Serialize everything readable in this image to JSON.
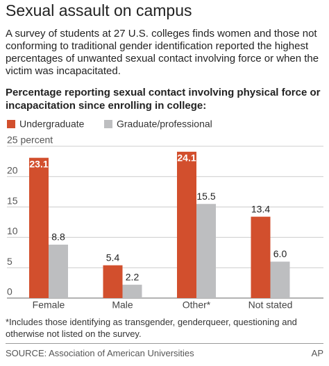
{
  "chart_data": {
    "type": "bar",
    "title": "Sexual assault on campus",
    "subtitle": "A survey of students at 27 U.S. colleges finds women and those not conforming to traditional gender identification reported the highest percentages of unwanted sexual contact involving force or when the victim was incapacitated.",
    "chart_title": "Percentage reporting sexual contact involving physical force or incapacitation since enrolling in college:",
    "categories": [
      "Female",
      "Male",
      "Other*",
      "Not stated"
    ],
    "series": [
      {
        "name": "Undergraduate",
        "color": "#d24f2d",
        "values": [
          23.1,
          5.4,
          24.1,
          13.4
        ],
        "value_labels": [
          "23.1",
          "5.4",
          "24.1",
          "13.4"
        ]
      },
      {
        "name": "Graduate/professional",
        "color": "#bdbec0",
        "values": [
          8.8,
          2.2,
          15.5,
          6.0
        ],
        "value_labels": [
          "8.8",
          "2.2",
          "15.5",
          "6.0"
        ]
      }
    ],
    "ylim": [
      0,
      25
    ],
    "yticks": [
      0,
      5,
      10,
      15,
      20,
      {
        "value": 25,
        "label": "25 percent"
      }
    ],
    "grid": true,
    "footnote": "*Includes those identifying as transgender, genderqueer, questioning and otherwise not listed on the survey.",
    "source": "SOURCE: Association of American Universities",
    "credit": "AP"
  }
}
